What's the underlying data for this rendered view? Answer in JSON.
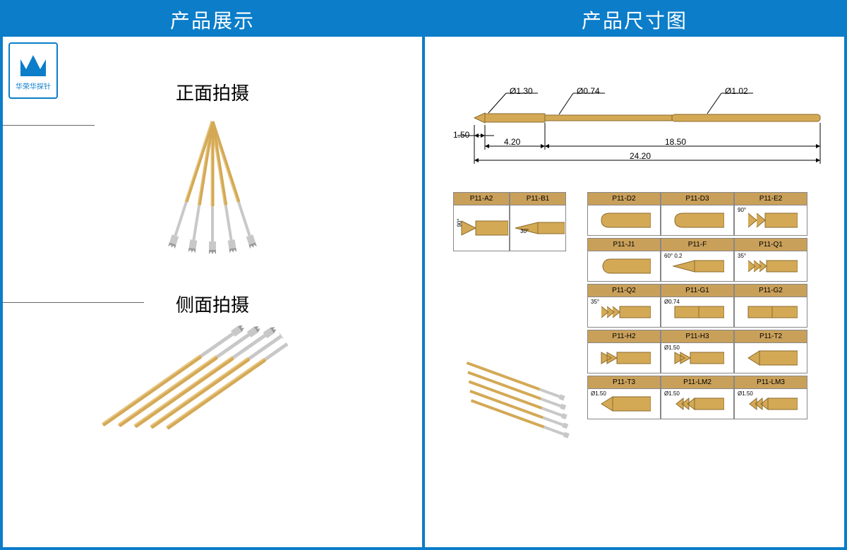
{
  "colors": {
    "frame": "#0b7dc9",
    "gold": "#d4a956",
    "gold_dark": "#b8903f",
    "silver": "#c8c8c8",
    "tip_header": "#c9a05a"
  },
  "left": {
    "header": "产品展示",
    "logo_text": "华荣华探针",
    "section1": "正面拍摄",
    "section2": "侧面拍摄"
  },
  "right": {
    "header": "产品尺寸图",
    "dimensions": {
      "d_tip": "Ø1.30",
      "d_shaft": "Ø0.74",
      "d_body": "Ø1.02",
      "cone": "1.50",
      "seg1": "4.20",
      "seg2": "18.50",
      "total": "24.20"
    },
    "tips_left": [
      {
        "code": "P11-A2",
        "note": "90°"
      },
      {
        "code": "P11-B1",
        "note": "30°"
      }
    ],
    "tips_grid": [
      [
        {
          "code": "P11-D2"
        },
        {
          "code": "P11-D3"
        },
        {
          "code": "P11-E2",
          "note": "90°"
        }
      ],
      [
        {
          "code": "P11-J1"
        },
        {
          "code": "P11-F",
          "note": "60° 0.2"
        },
        {
          "code": "P11-Q1",
          "note": "35°"
        }
      ],
      [
        {
          "code": "P11-Q2",
          "note": "35°"
        },
        {
          "code": "P11-G1",
          "note": "Ø0.74"
        },
        {
          "code": "P11-G2"
        }
      ],
      [
        {
          "code": "P11-H2"
        },
        {
          "code": "P11-H3",
          "note": "Ø1.50"
        },
        {
          "code": "P11-T2"
        }
      ],
      [
        {
          "code": "P11-T3",
          "note": "Ø1.50"
        },
        {
          "code": "P11-LM2",
          "note": "Ø1.50"
        },
        {
          "code": "P11-LM3",
          "note": "Ø1.50"
        }
      ]
    ]
  }
}
